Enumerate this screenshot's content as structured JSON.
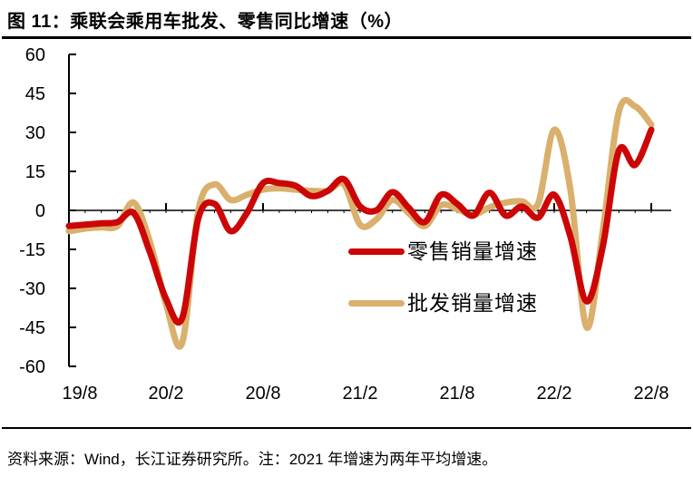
{
  "title": "图 11：乘联会乘用车批发、零售同比增速（%）",
  "footer": {
    "text": "资料来源：Wind，长江证券研究所。注：2021 年增速为两年平均增速。"
  },
  "chart_data": {
    "type": "line",
    "title": "乘联会乘用车批发、零售同比增速（%）",
    "xlabel": "",
    "ylabel": "",
    "ylim": [
      -60,
      60
    ],
    "grid": false,
    "legend_position": "middle-center",
    "y_ticks": [
      60,
      45,
      30,
      15,
      0,
      -15,
      -30,
      -45,
      -60
    ],
    "x_tick_labels": [
      "19/8",
      "20/2",
      "20/8",
      "21/2",
      "21/8",
      "22/2",
      "22/8"
    ],
    "x": [
      "19/8",
      "19/9",
      "19/10",
      "19/11",
      "19/12",
      "20/1",
      "20/2",
      "20/3",
      "20/4",
      "20/5",
      "20/6",
      "20/7",
      "20/8",
      "20/9",
      "20/10",
      "20/11",
      "20/12",
      "21/1",
      "21/2",
      "21/3",
      "21/4",
      "21/5",
      "21/6",
      "21/7",
      "21/8",
      "21/9",
      "21/10",
      "21/11",
      "21/12",
      "22/1",
      "22/2",
      "22/3",
      "22/4",
      "22/5",
      "22/6",
      "22/7",
      "22/8"
    ],
    "series": [
      {
        "name": "零售销量增速",
        "color": "#cc0606",
        "values": [
          -6,
          -5.5,
          -5,
          -4.5,
          -1,
          -16,
          -34,
          -41.5,
          -3,
          2.5,
          -8,
          -1,
          10.5,
          10.5,
          9.5,
          5.5,
          7.5,
          12,
          1.5,
          0,
          7,
          1,
          -4.5,
          6,
          2.5,
          -2,
          6.8,
          -2,
          1.5,
          -2.8,
          6,
          -10,
          -35,
          -14,
          23,
          17.5,
          31
        ]
      },
      {
        "name": "批发销量增速",
        "color": "#d9b06c",
        "values": [
          -8,
          -7,
          -6.5,
          -6,
          3,
          -12,
          -36,
          -51,
          0,
          10,
          4,
          6,
          8,
          8.5,
          8,
          7.5,
          7.5,
          10,
          -5.5,
          -3.5,
          4,
          -1,
          -6,
          2,
          0.5,
          -1.7,
          1.2,
          3,
          3.5,
          2.5,
          31,
          8,
          -45,
          -8,
          38,
          40,
          33
        ]
      }
    ],
    "axis_color": "#000000"
  }
}
